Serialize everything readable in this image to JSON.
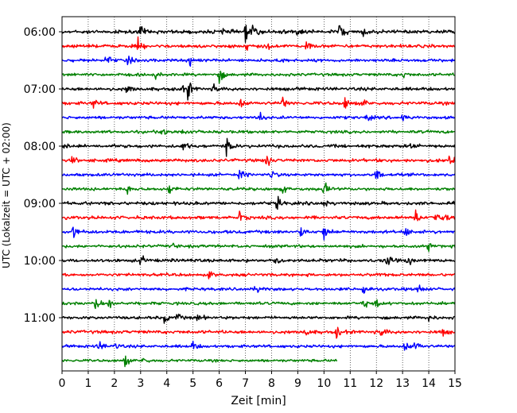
{
  "chart_data": {
    "type": "line",
    "title": "",
    "xlabel": "Zeit  [min]",
    "ylabel": "UTC (Lokalzeit = UTC + 02:00)",
    "xlim": [
      0,
      15
    ],
    "x_ticks": [
      "0",
      "1",
      "2",
      "3",
      "4",
      "5",
      "6",
      "7",
      "8",
      "9",
      "10",
      "11",
      "12",
      "13",
      "14",
      "15"
    ],
    "y_ticks": [
      "06:00",
      "07:00",
      "08:00",
      "09:00",
      "10:00",
      "11:00"
    ],
    "vertical_grid": true,
    "trace_interval_minutes": 15,
    "trace_colors": [
      "#000000",
      "#ff0000",
      "#0000ff",
      "#008000"
    ],
    "traces": [
      {
        "start": "06:00",
        "color": "#000000",
        "end_min": 15,
        "amplitude": 0.55,
        "events": [
          [
            3.0,
            1.5
          ],
          [
            6.1,
            1.2
          ],
          [
            7.0,
            2.6
          ],
          [
            7.3,
            2.0
          ],
          [
            8.3,
            1.5
          ],
          [
            9.0,
            1.3
          ],
          [
            10.6,
            3.2
          ],
          [
            11.5,
            1.2
          ]
        ]
      },
      {
        "start": "06:15",
        "color": "#ff0000",
        "end_min": 15,
        "amplitude": 0.5,
        "events": [
          [
            2.9,
            2.0
          ],
          [
            7.0,
            1.6
          ],
          [
            9.3,
            2.0
          ],
          [
            7.8,
            1.3
          ]
        ]
      },
      {
        "start": "06:30",
        "color": "#0000ff",
        "end_min": 15,
        "amplitude": 0.45,
        "events": [
          [
            1.7,
            2.2
          ],
          [
            2.5,
            1.5
          ],
          [
            4.9,
            1.8
          ],
          [
            8.3,
            1.0
          ]
        ]
      },
      {
        "start": "06:45",
        "color": "#008000",
        "end_min": 15,
        "amplitude": 0.45,
        "events": [
          [
            3.6,
            1.3
          ],
          [
            6.0,
            2.5
          ],
          [
            13.0,
            1.2
          ]
        ]
      },
      {
        "start": "07:00",
        "color": "#000000",
        "end_min": 15,
        "amplitude": 0.5,
        "events": [
          [
            2.5,
            2.0
          ],
          [
            4.5,
            1.5
          ],
          [
            4.8,
            3.0
          ],
          [
            5.8,
            1.2
          ]
        ]
      },
      {
        "start": "07:15",
        "color": "#ff0000",
        "end_min": 15,
        "amplitude": 0.5,
        "events": [
          [
            1.2,
            1.5
          ],
          [
            6.8,
            1.6
          ],
          [
            8.4,
            2.2
          ],
          [
            10.8,
            2.0
          ],
          [
            11.5,
            1.3
          ]
        ]
      },
      {
        "start": "07:30",
        "color": "#0000ff",
        "end_min": 15,
        "amplitude": 0.45,
        "events": [
          [
            7.5,
            2.0
          ],
          [
            11.6,
            1.2
          ],
          [
            13.0,
            1.2
          ]
        ]
      },
      {
        "start": "07:45",
        "color": "#008000",
        "end_min": 15,
        "amplitude": 0.45,
        "events": [
          [
            3.8,
            1.8
          ],
          [
            4.6,
            1.8
          ]
        ]
      },
      {
        "start": "08:00",
        "color": "#000000",
        "end_min": 15,
        "amplitude": 0.5,
        "events": [
          [
            0.1,
            1.2
          ],
          [
            4.6,
            1.6
          ],
          [
            6.3,
            2.8
          ],
          [
            13.3,
            1.4
          ]
        ]
      },
      {
        "start": "08:15",
        "color": "#ff0000",
        "end_min": 15,
        "amplitude": 0.5,
        "events": [
          [
            7.8,
            2.5
          ],
          [
            14.8,
            2.2
          ],
          [
            0.4,
            1.0
          ]
        ]
      },
      {
        "start": "08:30",
        "color": "#0000ff",
        "end_min": 15,
        "amplitude": 0.45,
        "events": [
          [
            6.8,
            1.8
          ],
          [
            8.0,
            1.5
          ],
          [
            12.0,
            2.0
          ]
        ]
      },
      {
        "start": "08:45",
        "color": "#008000",
        "end_min": 15,
        "amplitude": 0.45,
        "events": [
          [
            2.5,
            1.6
          ],
          [
            4.1,
            1.8
          ],
          [
            8.4,
            1.3
          ],
          [
            10.0,
            2.5
          ]
        ]
      },
      {
        "start": "09:00",
        "color": "#000000",
        "end_min": 15,
        "amplitude": 0.5,
        "events": [
          [
            8.2,
            2.0
          ],
          [
            10.0,
            1.5
          ]
        ]
      },
      {
        "start": "09:15",
        "color": "#ff0000",
        "end_min": 15,
        "amplitude": 0.5,
        "events": [
          [
            6.8,
            1.8
          ],
          [
            13.5,
            2.5
          ],
          [
            14.2,
            3.2
          ],
          [
            14.7,
            2.0
          ]
        ]
      },
      {
        "start": "09:30",
        "color": "#0000ff",
        "end_min": 15,
        "amplitude": 0.5,
        "events": [
          [
            0.4,
            2.8
          ],
          [
            9.1,
            1.5
          ],
          [
            10.0,
            2.6
          ],
          [
            13.1,
            1.6
          ]
        ]
      },
      {
        "start": "09:45",
        "color": "#008000",
        "end_min": 15,
        "amplitude": 0.45,
        "events": [
          [
            14.0,
            1.2
          ],
          [
            4.2,
            1.0
          ]
        ]
      },
      {
        "start": "10:00",
        "color": "#000000",
        "end_min": 15,
        "amplitude": 0.5,
        "events": [
          [
            3.0,
            1.6
          ],
          [
            8.2,
            2.0
          ],
          [
            12.4,
            2.2
          ],
          [
            13.2,
            1.5
          ]
        ]
      },
      {
        "start": "10:15",
        "color": "#ff0000",
        "end_min": 15,
        "amplitude": 0.45,
        "events": [
          [
            5.6,
            1.0
          ],
          [
            12.0,
            1.0
          ]
        ]
      },
      {
        "start": "10:30",
        "color": "#0000ff",
        "end_min": 15,
        "amplitude": 0.45,
        "events": [
          [
            7.4,
            1.3
          ],
          [
            11.5,
            2.0
          ],
          [
            13.6,
            1.6
          ]
        ]
      },
      {
        "start": "10:45",
        "color": "#008000",
        "end_min": 15,
        "amplitude": 0.45,
        "events": [
          [
            1.3,
            2.5
          ],
          [
            1.8,
            1.5
          ],
          [
            11.5,
            1.5
          ],
          [
            12.0,
            1.3
          ]
        ]
      },
      {
        "start": "11:00",
        "color": "#000000",
        "end_min": 15,
        "amplitude": 0.45,
        "events": [
          [
            3.9,
            1.6
          ],
          [
            4.4,
            1.4
          ],
          [
            5.2,
            1.3
          ],
          [
            14.0,
            1.2
          ]
        ]
      },
      {
        "start": "11:15",
        "color": "#ff0000",
        "end_min": 15,
        "amplitude": 0.5,
        "events": [
          [
            9.3,
            1.3
          ],
          [
            10.5,
            2.0
          ],
          [
            12.2,
            1.8
          ],
          [
            14.5,
            1.4
          ]
        ]
      },
      {
        "start": "11:30",
        "color": "#0000ff",
        "end_min": 15,
        "amplitude": 0.45,
        "events": [
          [
            1.4,
            1.8
          ],
          [
            2.0,
            1.5
          ],
          [
            5.0,
            1.4
          ],
          [
            13.1,
            1.8
          ],
          [
            13.5,
            2.0
          ]
        ]
      },
      {
        "start": "11:45",
        "color": "#008000",
        "end_min": 10.5,
        "amplitude": 0.4,
        "events": [
          [
            2.4,
            1.8
          ],
          [
            3.1,
            1.2
          ]
        ]
      }
    ]
  }
}
